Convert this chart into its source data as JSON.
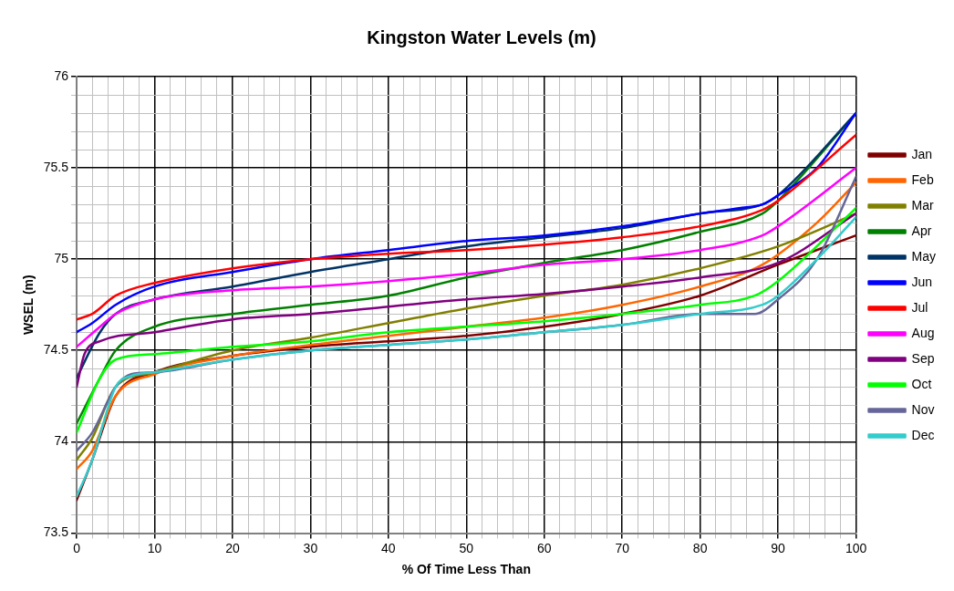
{
  "chart_data": {
    "type": "line",
    "title": "Kingston Water Levels (m)",
    "xlabel": "% Of Time Less Than",
    "ylabel": "WSEL (m)",
    "xlim": [
      0,
      100
    ],
    "ylim": [
      73.5,
      76
    ],
    "xticks": [
      0,
      {
        "value": 2,
        "label": null
      },
      {
        "value": 4,
        "label": null
      },
      {
        "value": 6,
        "label": null
      },
      {
        "value": 8,
        "label": null
      },
      10,
      {
        "value": 12,
        "label": null
      },
      {
        "value": 14,
        "label": null
      },
      {
        "value": 16,
        "label": null
      },
      {
        "value": 18,
        "label": null
      },
      20,
      {
        "value": 22,
        "label": null
      },
      {
        "value": 24,
        "label": null
      },
      {
        "value": 26,
        "label": null
      },
      {
        "value": 28,
        "label": null
      },
      30,
      {
        "value": 32,
        "label": null
      },
      {
        "value": 34,
        "label": null
      },
      {
        "value": 36,
        "label": null
      },
      {
        "value": 38,
        "label": null
      },
      40,
      {
        "value": 42,
        "label": null
      },
      {
        "value": 44,
        "label": null
      },
      {
        "value": 46,
        "label": null
      },
      {
        "value": 48,
        "label": null
      },
      50,
      {
        "value": 52,
        "label": null
      },
      {
        "value": 54,
        "label": null
      },
      {
        "value": 56,
        "label": null
      },
      {
        "value": 58,
        "label": null
      },
      60,
      {
        "value": 62,
        "label": null
      },
      {
        "value": 64,
        "label": null
      },
      {
        "value": 66,
        "label": null
      },
      {
        "value": 68,
        "label": null
      },
      70,
      {
        "value": 72,
        "label": null
      },
      {
        "value": 74,
        "label": null
      },
      {
        "value": 76,
        "label": null
      },
      {
        "value": 78,
        "label": null
      },
      80,
      {
        "value": 82,
        "label": null
      },
      {
        "value": 84,
        "label": null
      },
      {
        "value": 86,
        "label": null
      },
      {
        "value": 88,
        "label": null
      },
      90,
      {
        "value": 92,
        "label": null
      },
      {
        "value": 94,
        "label": null
      },
      {
        "value": 96,
        "label": null
      },
      {
        "value": 98,
        "label": null
      },
      100
    ],
    "yticks": [
      73.5,
      {
        "value": 73.6,
        "label": null
      },
      {
        "value": 73.7,
        "label": null
      },
      {
        "value": 73.8,
        "label": null
      },
      {
        "value": 73.9,
        "label": null
      },
      74,
      {
        "value": 74.1,
        "label": null
      },
      {
        "value": 74.2,
        "label": null
      },
      {
        "value": 74.3,
        "label": null
      },
      {
        "value": 74.4,
        "label": null
      },
      74.5,
      {
        "value": 74.6,
        "label": null
      },
      {
        "value": 74.7,
        "label": null
      },
      {
        "value": 74.8,
        "label": null
      },
      {
        "value": 74.9,
        "label": null
      },
      75,
      {
        "value": 75.1,
        "label": null
      },
      {
        "value": 75.2,
        "label": null
      },
      {
        "value": 75.3,
        "label": null
      },
      {
        "value": 75.4,
        "label": null
      },
      75.5,
      {
        "value": 75.6,
        "label": null
      },
      {
        "value": 75.7,
        "label": null
      },
      {
        "value": 75.8,
        "label": null
      },
      {
        "value": 75.9,
        "label": null
      },
      76
    ],
    "grid": true,
    "legend": "right",
    "marker": "none",
    "line_style": "solid",
    "series": [
      {
        "name": "Jan",
        "color": "#800000",
        "x": [
          0,
          2,
          5,
          10,
          20,
          30,
          40,
          50,
          60,
          70,
          80,
          90,
          100
        ],
        "values": [
          73.68,
          73.9,
          74.25,
          74.38,
          74.47,
          74.52,
          74.55,
          74.58,
          74.63,
          74.7,
          74.8,
          74.97,
          75.13
        ]
      },
      {
        "name": "Feb",
        "color": "#ff6600",
        "x": [
          0,
          2,
          5,
          10,
          20,
          30,
          40,
          50,
          60,
          70,
          80,
          88,
          95,
          100
        ],
        "values": [
          73.85,
          73.95,
          74.25,
          74.37,
          74.47,
          74.53,
          74.58,
          74.63,
          74.68,
          74.75,
          74.85,
          74.97,
          75.2,
          75.42
        ]
      },
      {
        "name": "Mar",
        "color": "#808000",
        "x": [
          0,
          2,
          5,
          10,
          20,
          30,
          40,
          50,
          60,
          70,
          80,
          90,
          100
        ],
        "values": [
          73.9,
          74.02,
          74.3,
          74.38,
          74.5,
          74.57,
          74.65,
          74.73,
          74.8,
          74.86,
          74.95,
          75.07,
          75.25
        ]
      },
      {
        "name": "Apr",
        "color": "#008000",
        "x": [
          0,
          3,
          5,
          10,
          20,
          30,
          40,
          50,
          60,
          70,
          80,
          88,
          90,
          100
        ],
        "values": [
          74.1,
          74.35,
          74.5,
          74.63,
          74.7,
          74.75,
          74.8,
          74.9,
          74.98,
          75.05,
          75.15,
          75.25,
          75.32,
          75.8
        ]
      },
      {
        "name": "May",
        "color": "#003366",
        "x": [
          0,
          3,
          5,
          10,
          20,
          30,
          40,
          50,
          60,
          70,
          80,
          88,
          90,
          100
        ],
        "values": [
          74.35,
          74.6,
          74.7,
          74.78,
          74.85,
          74.93,
          75.0,
          75.07,
          75.12,
          75.17,
          75.25,
          75.3,
          75.35,
          75.8
        ]
      },
      {
        "name": "Jun",
        "color": "#0000ff",
        "x": [
          0,
          2,
          5,
          10,
          20,
          30,
          40,
          50,
          60,
          70,
          80,
          85,
          88,
          90,
          95,
          100
        ],
        "values": [
          74.6,
          74.65,
          74.75,
          74.85,
          74.93,
          75.0,
          75.05,
          75.1,
          75.13,
          75.18,
          75.25,
          75.28,
          75.3,
          75.35,
          75.5,
          75.8
        ]
      },
      {
        "name": "Jul",
        "color": "#ff0000",
        "x": [
          0,
          2,
          5,
          10,
          20,
          30,
          40,
          50,
          60,
          70,
          80,
          88,
          90,
          100
        ],
        "values": [
          74.67,
          74.7,
          74.8,
          74.87,
          74.95,
          75.0,
          75.03,
          75.05,
          75.08,
          75.12,
          75.18,
          75.27,
          75.32,
          75.68
        ]
      },
      {
        "name": "Aug",
        "color": "#ff00ff",
        "x": [
          0,
          3,
          5,
          10,
          20,
          30,
          40,
          50,
          60,
          70,
          80,
          88,
          90,
          100
        ],
        "values": [
          74.52,
          74.63,
          74.7,
          74.78,
          74.83,
          74.85,
          74.88,
          74.92,
          74.97,
          75.0,
          75.05,
          75.13,
          75.18,
          75.5
        ]
      },
      {
        "name": "Sep",
        "color": "#800080",
        "x": [
          0,
          1,
          3,
          10,
          20,
          30,
          40,
          50,
          60,
          70,
          80,
          90,
          100
        ],
        "values": [
          74.3,
          74.48,
          74.55,
          74.6,
          74.67,
          74.7,
          74.74,
          74.78,
          74.81,
          74.85,
          74.9,
          74.98,
          75.25
        ]
      },
      {
        "name": "Oct",
        "color": "#00ff00",
        "x": [
          0,
          3,
          5,
          10,
          20,
          30,
          40,
          50,
          60,
          70,
          80,
          87,
          90,
          100
        ],
        "values": [
          74.05,
          74.35,
          74.45,
          74.48,
          74.52,
          74.55,
          74.6,
          74.63,
          74.66,
          74.7,
          74.75,
          74.8,
          74.88,
          75.28
        ]
      },
      {
        "name": "Nov",
        "color": "#666699",
        "x": [
          0,
          2,
          5,
          7,
          10,
          20,
          30,
          40,
          50,
          60,
          70,
          80,
          87,
          90,
          95,
          100
        ],
        "values": [
          73.95,
          74.05,
          74.3,
          74.37,
          74.38,
          74.45,
          74.5,
          74.53,
          74.56,
          74.6,
          74.64,
          74.7,
          74.7,
          74.78,
          75.0,
          75.45
        ]
      },
      {
        "name": "Dec",
        "color": "#33cccc",
        "x": [
          0,
          2,
          5,
          7,
          10,
          20,
          30,
          40,
          50,
          60,
          70,
          80,
          88,
          90,
          95,
          100
        ],
        "values": [
          73.7,
          73.9,
          74.3,
          74.36,
          74.38,
          74.45,
          74.5,
          74.53,
          74.56,
          74.6,
          74.64,
          74.7,
          74.75,
          74.8,
          75.0,
          75.23
        ]
      }
    ]
  }
}
